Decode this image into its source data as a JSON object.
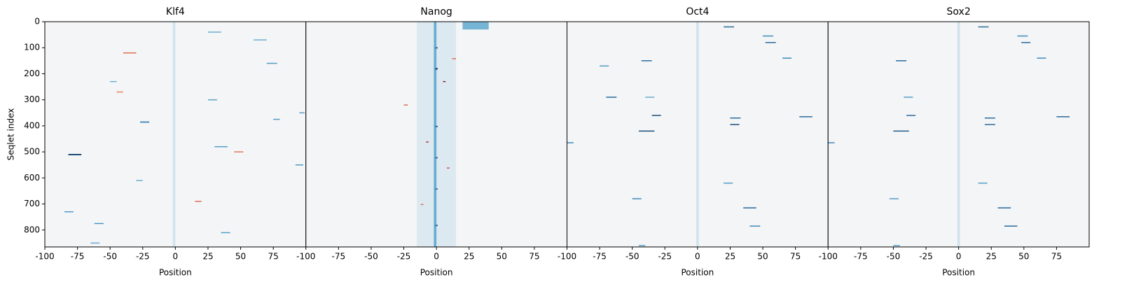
{
  "chart_data": [
    {
      "type": "heatmap",
      "title": "Klf4",
      "x_label": "Position",
      "y_label": "Seqlet index",
      "xlim": [
        -100,
        100
      ],
      "xticks": [
        -100,
        -75,
        -50,
        -25,
        0,
        25,
        50,
        75
      ],
      "ylim": [
        0,
        865
      ],
      "yticks": [
        0,
        100,
        200,
        300,
        400,
        500,
        600,
        700,
        800
      ],
      "vlim": [
        -1,
        1
      ],
      "cells": [
        [
          -2,
          0,
          0,
          865,
          -0.12
        ],
        [
          -82,
          -72,
          508,
          513,
          -0.95
        ],
        [
          -40,
          -30,
          118,
          122,
          0.6
        ],
        [
          -27,
          -20,
          383,
          388,
          -0.7
        ],
        [
          30,
          40,
          478,
          482,
          -0.6
        ],
        [
          45,
          52,
          498,
          502,
          0.55
        ],
        [
          75,
          80,
          373,
          377,
          -0.6
        ],
        [
          70,
          78,
          158,
          162,
          -0.6
        ],
        [
          25,
          32,
          298,
          302,
          -0.55
        ],
        [
          25,
          35,
          38,
          42,
          -0.5
        ],
        [
          -85,
          -78,
          728,
          732,
          -0.6
        ],
        [
          -62,
          -55,
          773,
          777,
          -0.65
        ],
        [
          35,
          42,
          808,
          812,
          -0.6
        ],
        [
          92,
          98,
          548,
          552,
          -0.6
        ],
        [
          95,
          99,
          348,
          352,
          -0.6
        ],
        [
          15,
          20,
          688,
          692,
          0.6
        ],
        [
          -50,
          -45,
          228,
          232,
          -0.5
        ],
        [
          -30,
          -25,
          608,
          612,
          -0.5
        ],
        [
          -65,
          -58,
          848,
          852,
          -0.5
        ],
        [
          60,
          70,
          68,
          72,
          -0.5
        ],
        [
          -45,
          -40,
          268,
          272,
          0.5
        ]
      ]
    },
    {
      "type": "heatmap",
      "title": "Nanog",
      "x_label": "Position",
      "xlim": [
        -100,
        100
      ],
      "xticks": [
        -100,
        -75,
        -50,
        -25,
        0,
        25,
        50,
        75
      ],
      "ylim": [
        0,
        865
      ],
      "vlim": [
        -1,
        1
      ],
      "cells": [
        [
          -15,
          15,
          0,
          865,
          -0.08
        ],
        [
          -2,
          0,
          0,
          865,
          -0.5
        ],
        [
          20,
          40,
          0,
          30,
          -0.45
        ],
        [
          -1,
          1,
          178,
          184,
          -0.9
        ],
        [
          -1,
          1,
          98,
          103,
          -0.8
        ],
        [
          5,
          7,
          228,
          232,
          0.9
        ],
        [
          -25,
          -22,
          318,
          322,
          0.6
        ],
        [
          -1,
          1,
          400,
          405,
          -0.8
        ],
        [
          -1,
          1,
          520,
          525,
          -0.8
        ],
        [
          -1,
          1,
          640,
          645,
          -0.75
        ],
        [
          -1,
          1,
          780,
          785,
          -0.8
        ],
        [
          -8,
          -6,
          460,
          464,
          0.8
        ],
        [
          8,
          10,
          560,
          564,
          0.7
        ],
        [
          -12,
          -10,
          700,
          704,
          0.6
        ],
        [
          12,
          15,
          140,
          144,
          0.6
        ]
      ]
    },
    {
      "type": "heatmap",
      "title": "Oct4",
      "x_label": "Position",
      "xlim": [
        -100,
        100
      ],
      "xticks": [
        -100,
        -75,
        -50,
        -25,
        0,
        25,
        50,
        75
      ],
      "ylim": [
        0,
        865
      ],
      "vlim": [
        -1,
        1
      ],
      "cells": [
        [
          -1,
          1,
          0,
          865,
          -0.12
        ],
        [
          20,
          28,
          18,
          22,
          -0.8
        ],
        [
          50,
          58,
          53,
          57,
          -0.7
        ],
        [
          52,
          60,
          78,
          82,
          -0.8
        ],
        [
          -43,
          -35,
          148,
          152,
          -0.8
        ],
        [
          -75,
          -68,
          168,
          172,
          -0.6
        ],
        [
          65,
          72,
          138,
          142,
          -0.7
        ],
        [
          -70,
          -62,
          288,
          292,
          -0.8
        ],
        [
          -40,
          -33,
          288,
          292,
          -0.5
        ],
        [
          -35,
          -28,
          358,
          362,
          -0.9
        ],
        [
          25,
          33,
          368,
          372,
          -0.8
        ],
        [
          78,
          88,
          363,
          367,
          -0.8
        ],
        [
          25,
          32,
          393,
          397,
          -0.9
        ],
        [
          -45,
          -33,
          418,
          422,
          -0.9
        ],
        [
          -100,
          -95,
          463,
          467,
          -0.7
        ],
        [
          20,
          27,
          618,
          622,
          -0.6
        ],
        [
          -50,
          -43,
          678,
          682,
          -0.7
        ],
        [
          35,
          45,
          713,
          717,
          -0.8
        ],
        [
          40,
          48,
          783,
          787,
          -0.7
        ],
        [
          -45,
          -40,
          858,
          862,
          -0.6
        ]
      ]
    },
    {
      "type": "heatmap",
      "title": "Sox2",
      "x_label": "Position",
      "xlim": [
        -100,
        100
      ],
      "xticks": [
        -100,
        -75,
        -50,
        -25,
        0,
        25,
        50,
        75
      ],
      "ylim": [
        0,
        865
      ],
      "vlim": [
        -1,
        1
      ],
      "cells": [
        [
          -1,
          1,
          0,
          865,
          -0.12
        ],
        [
          15,
          23,
          18,
          22,
          -0.8
        ],
        [
          45,
          53,
          53,
          57,
          -0.7
        ],
        [
          48,
          55,
          78,
          82,
          -0.8
        ],
        [
          -48,
          -40,
          148,
          152,
          -0.8
        ],
        [
          60,
          67,
          138,
          142,
          -0.7
        ],
        [
          -42,
          -35,
          288,
          292,
          -0.6
        ],
        [
          -40,
          -33,
          358,
          362,
          -0.8
        ],
        [
          75,
          85,
          363,
          367,
          -0.8
        ],
        [
          20,
          28,
          368,
          372,
          -0.8
        ],
        [
          20,
          28,
          393,
          397,
          -0.8
        ],
        [
          -50,
          -38,
          418,
          422,
          -0.85
        ],
        [
          -100,
          -95,
          463,
          467,
          -0.7
        ],
        [
          15,
          22,
          618,
          622,
          -0.6
        ],
        [
          -53,
          -46,
          678,
          682,
          -0.6
        ],
        [
          30,
          40,
          713,
          717,
          -0.8
        ],
        [
          35,
          45,
          783,
          787,
          -0.8
        ],
        [
          -50,
          -45,
          858,
          862,
          -0.6
        ]
      ]
    }
  ]
}
